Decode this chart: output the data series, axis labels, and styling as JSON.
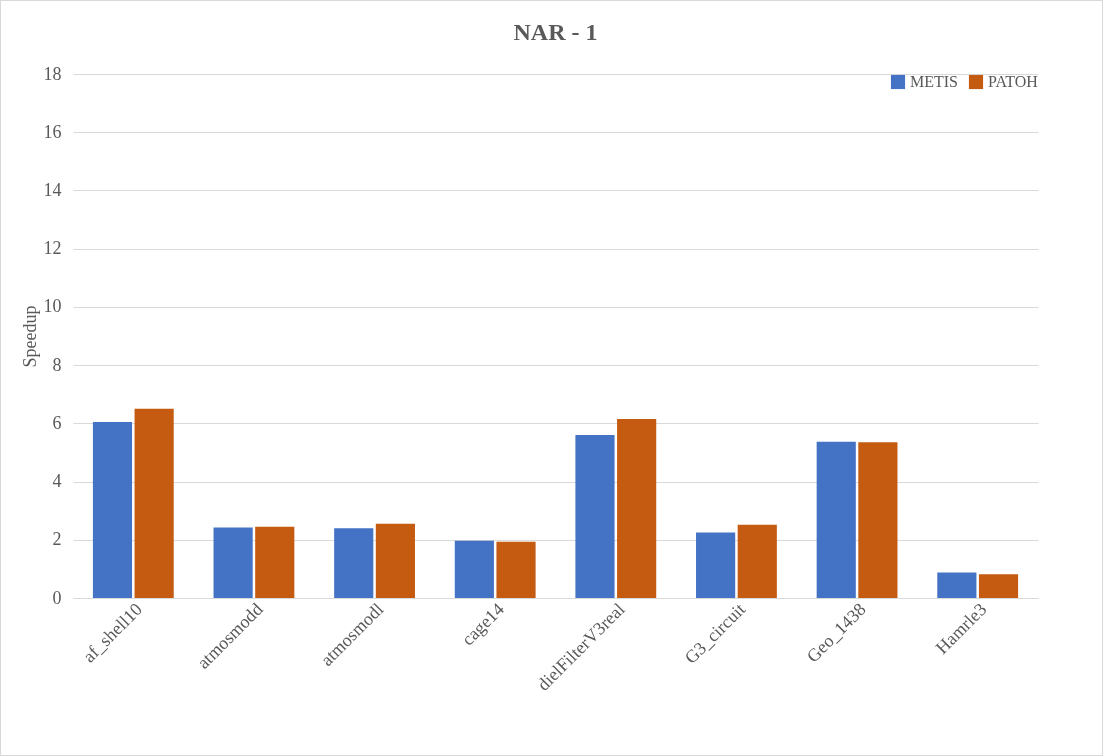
{
  "chart_data": {
    "type": "bar",
    "title": "NAR - 1",
    "ylabel": "Speedup",
    "categories": [
      "af_shell10",
      "atmosmodd",
      "atmosmodl",
      "cage14",
      "dielFilterV3real",
      "G3_circuit",
      "Geo_1438",
      "Hamrle3"
    ],
    "series": [
      {
        "name": "METIS",
        "color": "#4472c4",
        "values": [
          6.05,
          2.42,
          2.4,
          1.97,
          5.6,
          2.25,
          5.37,
          0.88
        ]
      },
      {
        "name": "PATOH",
        "color": "#c55a11",
        "values": [
          6.5,
          2.45,
          2.55,
          1.93,
          6.15,
          2.52,
          5.35,
          0.82
        ]
      }
    ],
    "ylim": [
      0,
      18
    ],
    "yticks": [
      0,
      2,
      4,
      6,
      8,
      10,
      12,
      14,
      16,
      18
    ],
    "grid": "y",
    "legend": "top right"
  }
}
